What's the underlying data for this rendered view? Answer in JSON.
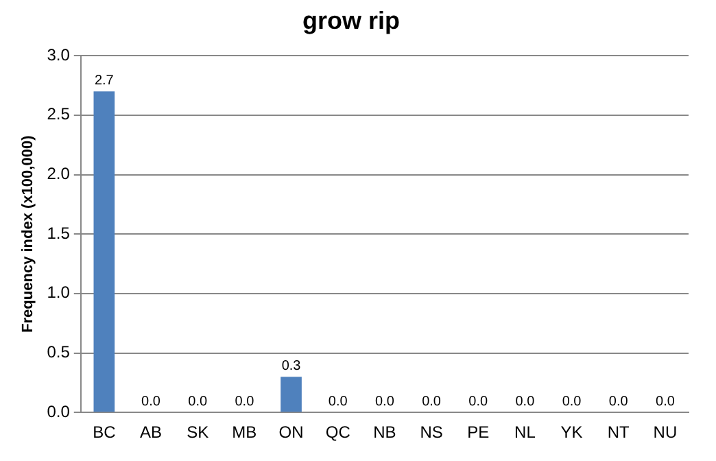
{
  "chart_data": {
    "type": "bar",
    "title": "grow rip",
    "ylabel": "Frequency index (x100,000)",
    "categories": [
      "BC",
      "AB",
      "SK",
      "MB",
      "ON",
      "QC",
      "NB",
      "NS",
      "PE",
      "NL",
      "YK",
      "NT",
      "NU"
    ],
    "values": [
      2.7,
      0,
      0,
      0,
      0.3,
      0,
      0,
      0,
      0,
      0,
      0,
      0,
      0
    ],
    "value_labels": [
      "2.7",
      "0.0",
      "0.0",
      "0.0",
      "0.3",
      "0.0",
      "0.0",
      "0.0",
      "0.0",
      "0.0",
      "0.0",
      "0.0",
      "0.0"
    ],
    "color": "#4f81bd",
    "ylim": [
      0,
      3
    ],
    "yticks": [
      {
        "value": 0,
        "label": "0.0"
      },
      {
        "value": 0.5,
        "label": "0.5"
      },
      {
        "value": 1,
        "label": "1.0"
      },
      {
        "value": 1.5,
        "label": "1.5"
      },
      {
        "value": 2,
        "label": "2.0"
      },
      {
        "value": 2.5,
        "label": "2.5"
      },
      {
        "value": 3,
        "label": "3.0"
      }
    ],
    "grid": "y",
    "legend": false
  }
}
